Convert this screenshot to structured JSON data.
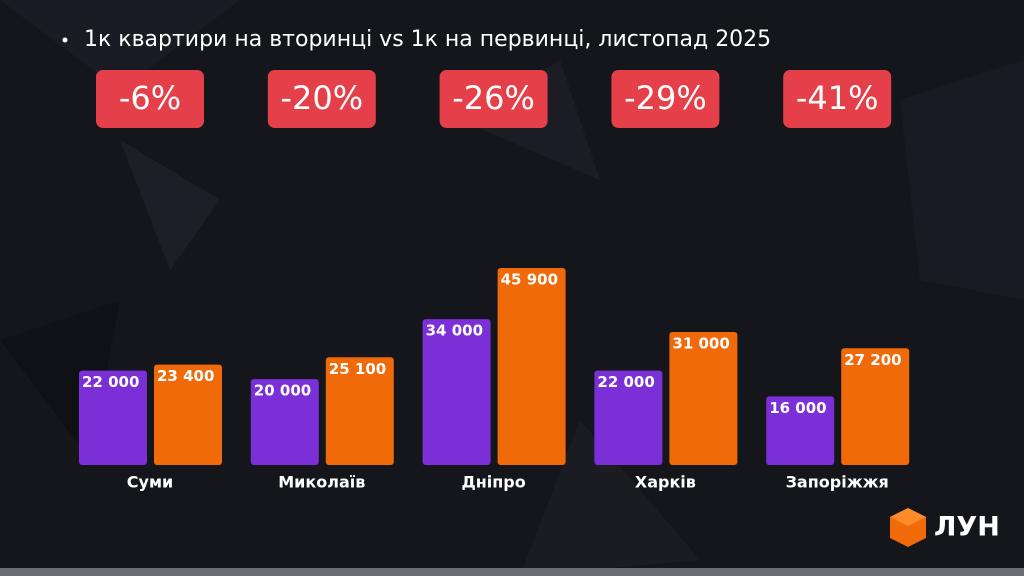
{
  "chart_data": {
    "type": "bar",
    "title": "1к квартири на вторинці vs 1к на первинці, листопад 2025",
    "categories": [
      "Суми",
      "Миколаїв",
      "Дніпро",
      "Харків",
      "Запоріжжя"
    ],
    "badges": [
      "-6%",
      "-20%",
      "-26%",
      "-29%",
      "-41%"
    ],
    "badge_color": "#e5404a",
    "series": [
      {
        "color": "#7b2fd6",
        "values": [
          22000,
          20000,
          34000,
          22000,
          16000
        ],
        "value_labels": [
          "22 000",
          "20 000",
          "34 000",
          "22 000",
          "16 000"
        ]
      },
      {
        "color": "#f06a0a",
        "values": [
          23400,
          25100,
          45900,
          31000,
          27200
        ],
        "value_labels": [
          "23 400",
          "25 100",
          "45 900",
          "31 000",
          "27 200"
        ]
      }
    ],
    "logo": "ЛУН"
  }
}
